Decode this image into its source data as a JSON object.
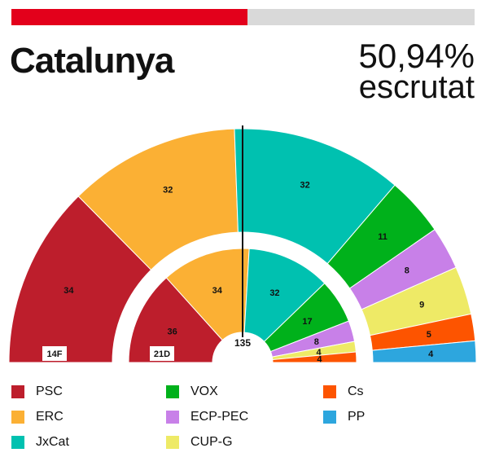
{
  "progress": {
    "fraction": 0.5094,
    "fill_color": "#e3001b",
    "track_color": "#d9d9d9"
  },
  "header": {
    "title": "Catalunya",
    "scrutiny_pct": "50,94%",
    "scrutiny_label": "escrutat"
  },
  "chart_data": {
    "type": "hemicycle",
    "total_seats": 135,
    "majority_label": "135",
    "rings": [
      {
        "label": "14F",
        "values": [
          34,
          32,
          32,
          11,
          8,
          9,
          5,
          4
        ]
      },
      {
        "label": "21D",
        "values": [
          36,
          34,
          32,
          17,
          8,
          4,
          4,
          0
        ]
      }
    ],
    "parties": [
      "PSC",
      "ERC",
      "JxCat",
      "VOX",
      "ECP-PEC",
      "CUP-G",
      "Cs",
      "PP"
    ],
    "colors": [
      "#bd1e2c",
      "#fbb034",
      "#00c1b0",
      "#00b11b",
      "#c880e8",
      "#eeea66",
      "#fd5400",
      "#2da6de"
    ]
  },
  "legend": [
    {
      "label": "PSC",
      "color": "#bd1e2c"
    },
    {
      "label": "ERC",
      "color": "#fbb034"
    },
    {
      "label": "JxCat",
      "color": "#00c1b0"
    },
    {
      "label": "VOX",
      "color": "#00b11b"
    },
    {
      "label": "ECP-PEC",
      "color": "#c880e8"
    },
    {
      "label": "CUP-G",
      "color": "#eeea66"
    },
    {
      "label": "Cs",
      "color": "#fd5400"
    },
    {
      "label": "PP",
      "color": "#2da6de"
    }
  ]
}
